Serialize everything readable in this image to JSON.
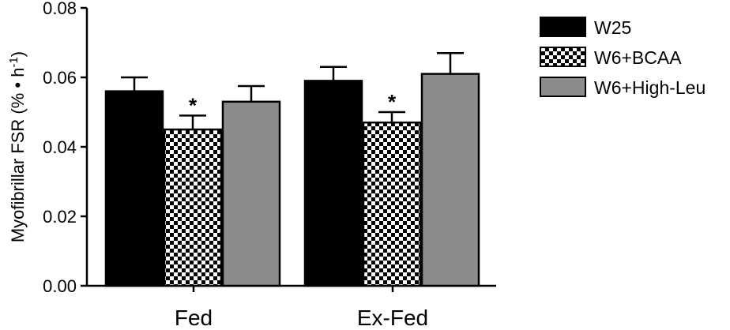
{
  "chart_data": {
    "type": "bar",
    "categories": [
      "Fed",
      "Ex-Fed"
    ],
    "series": [
      {
        "name": "W25",
        "values": [
          0.056,
          0.059
        ],
        "errors": [
          0.004,
          0.004
        ],
        "fill": "solid",
        "color": "#000000",
        "marker": [
          "",
          ""
        ]
      },
      {
        "name": "W6+BCAA",
        "values": [
          0.045,
          0.047
        ],
        "errors": [
          0.004,
          0.003
        ],
        "fill": "checker",
        "color": "#000000",
        "marker": [
          "*",
          "*"
        ]
      },
      {
        "name": "W6+High-Leu",
        "values": [
          0.053,
          0.061
        ],
        "errors": [
          0.0045,
          0.006
        ],
        "fill": "solid",
        "color": "#8c8c8c",
        "marker": [
          "",
          ""
        ]
      }
    ],
    "ylabel_main": "Myofibrillar FSR (% • h",
    "ylabel_sup": "-1",
    "ylabel_close": ")",
    "ylim": [
      0,
      0.08
    ],
    "yticks": [
      "0.00",
      "0.02",
      "0.04",
      "0.06",
      "0.08"
    ],
    "legend_position": "top-right",
    "grid": false
  }
}
